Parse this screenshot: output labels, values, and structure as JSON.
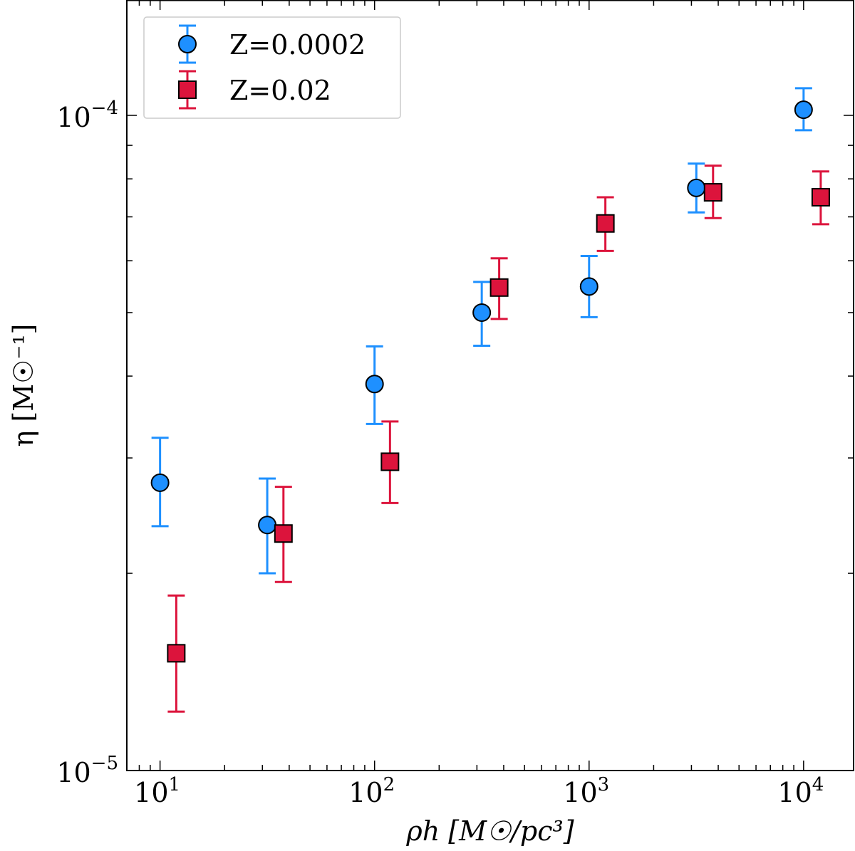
{
  "chart_data": {
    "type": "scatter",
    "title": "",
    "xlabel": "ρh [M☉/pc³]",
    "ylabel": "η [M☉⁻¹]",
    "xscale": "log",
    "yscale": "log",
    "xlim": [
      7,
      17100
    ],
    "ylim": [
      1e-05,
      0.00015
    ],
    "x_tick_labels": [
      {
        "value": 10,
        "base": "10",
        "exp": "1"
      },
      {
        "value": 100,
        "base": "10",
        "exp": "2"
      },
      {
        "value": 1000,
        "base": "10",
        "exp": "3"
      },
      {
        "value": 10000,
        "base": "10",
        "exp": "4"
      }
    ],
    "y_tick_labels": [
      {
        "value": 1e-05,
        "base": "10",
        "exp": "−5"
      },
      {
        "value": 0.0001,
        "base": "10",
        "exp": "−4"
      }
    ],
    "grid": false,
    "legend": {
      "placement": "top-left"
    },
    "series": [
      {
        "name": "Z=0.0002",
        "marker": "circle",
        "color": "#1e90ff",
        "x": [
          10,
          31.6,
          100,
          316,
          1000,
          3162,
          10000
        ],
        "y": [
          2.75e-05,
          2.37e-05,
          3.89e-05,
          5e-05,
          5.48e-05,
          7.75e-05,
          0.000102
        ],
        "y_upper": [
          3.22e-05,
          2.79e-05,
          4.44e-05,
          5.57e-05,
          6.1e-05,
          8.44e-05,
          0.00011
        ],
        "y_lower": [
          2.36e-05,
          2e-05,
          3.38e-05,
          4.45e-05,
          4.92e-05,
          7.11e-05,
          9.49e-05
        ]
      },
      {
        "name": "Z=0.02",
        "marker": "square",
        "color": "#dc143c",
        "x": [
          11.9,
          37.6,
          118,
          381,
          1191,
          3784,
          12020
        ],
        "y": [
          1.51e-05,
          2.3e-05,
          2.96e-05,
          5.46e-05,
          6.84e-05,
          7.63e-05,
          7.5e-05
        ],
        "y_upper": [
          1.85e-05,
          2.71e-05,
          3.41e-05,
          6.05e-05,
          7.5e-05,
          8.38e-05,
          8.21e-05
        ],
        "y_lower": [
          1.23e-05,
          1.94e-05,
          2.56e-05,
          4.89e-05,
          6.21e-05,
          6.97e-05,
          6.82e-05
        ]
      }
    ]
  }
}
